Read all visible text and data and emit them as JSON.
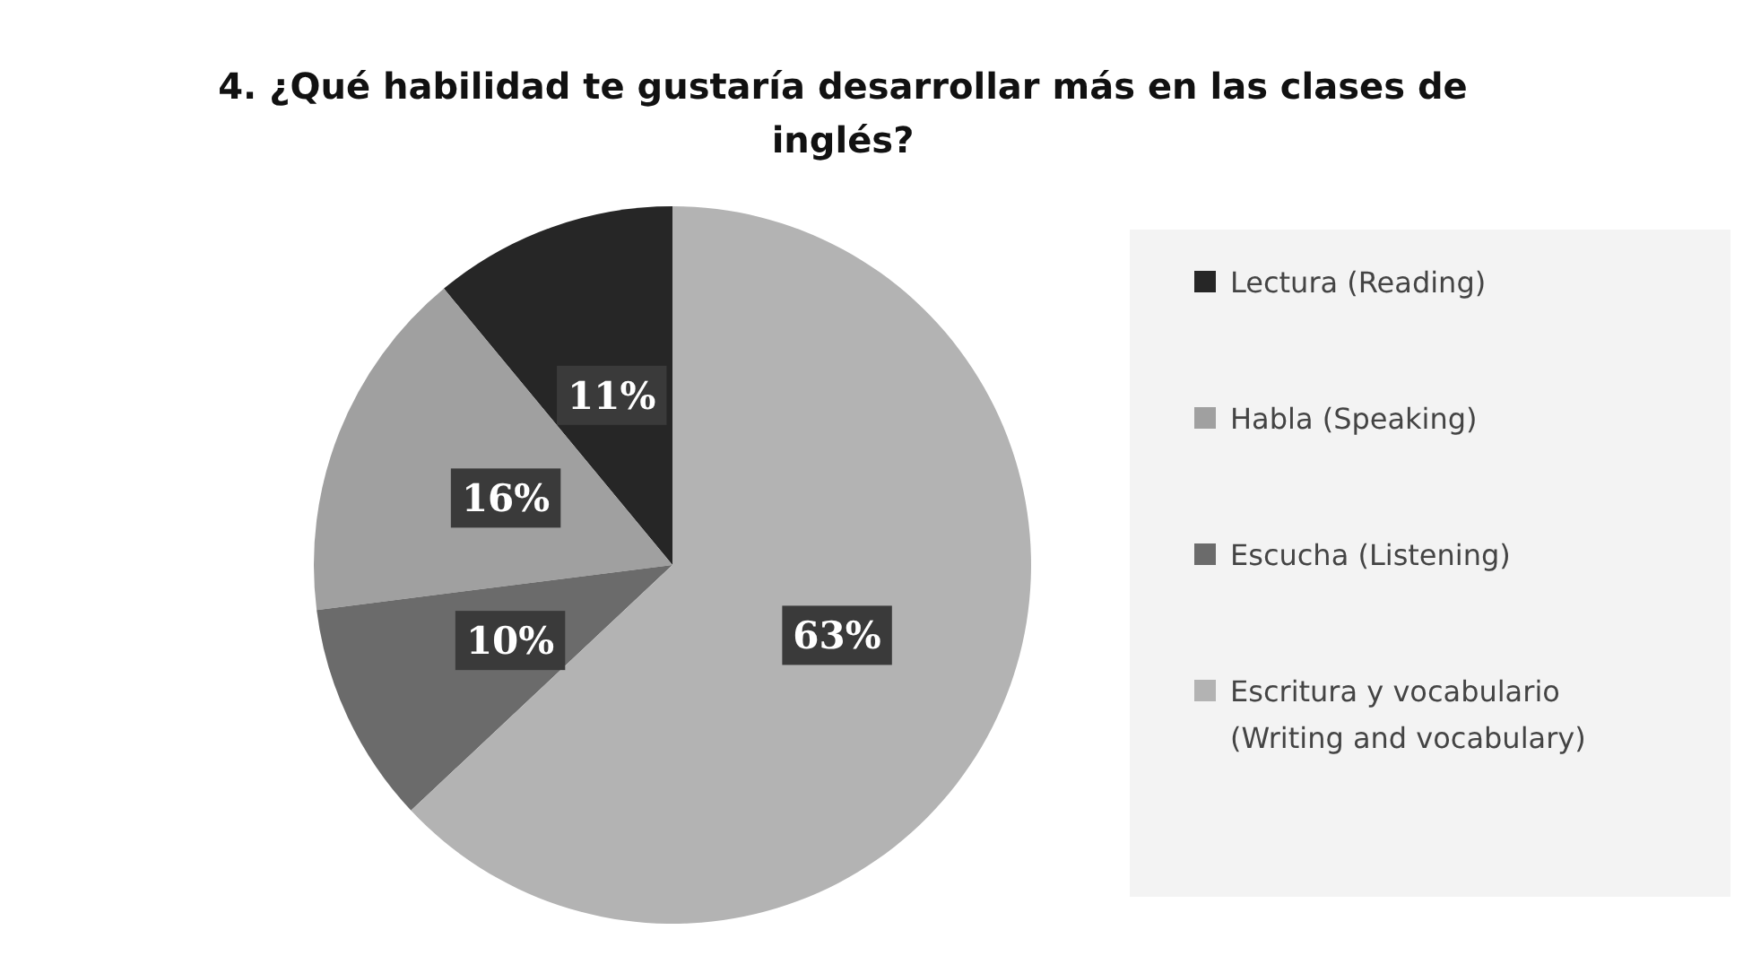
{
  "chart_data": {
    "type": "pie",
    "title": "4. ¿Qué habilidad te gustaría desarrollar más en las clases de inglés?",
    "categories": [
      "Lectura (Reading)",
      "Habla (Speaking)",
      "Escucha (Listening)",
      "Escritura y vocabulario (Writing and vocabulary)"
    ],
    "values": [
      11,
      16,
      10,
      63
    ],
    "colors": [
      "#262626",
      "#a0a0a0",
      "#6b6b6b",
      "#b3b3b3"
    ],
    "value_labels": [
      "11%",
      "16%",
      "10%",
      "63%"
    ],
    "legend": "right"
  }
}
